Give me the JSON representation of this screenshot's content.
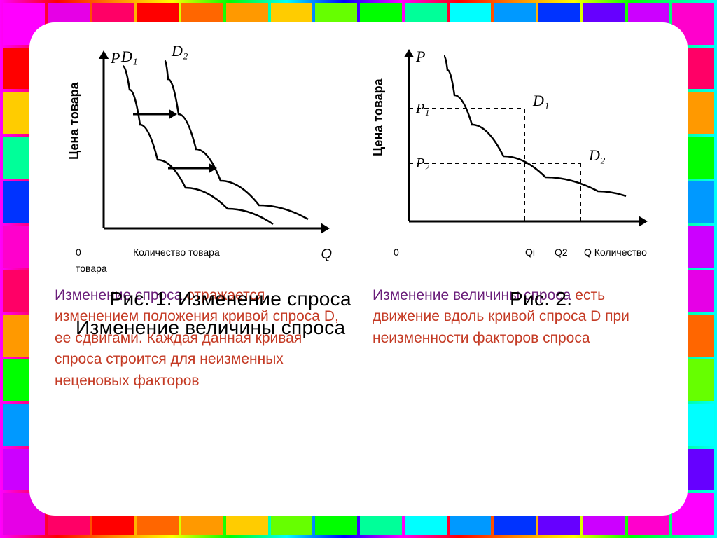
{
  "border": {
    "tile_colors": [
      "#ff00ff",
      "#e600e6",
      "#ff0066",
      "#ff0000",
      "#ff6600",
      "#ff9900",
      "#ffcc00",
      "#66ff00",
      "#00ff00",
      "#00ff99",
      "#00ffff",
      "#0099ff",
      "#0033ff",
      "#6600ff",
      "#cc00ff",
      "#ff00cc"
    ],
    "gap_color": "#222222"
  },
  "slide": {
    "background": "#ffffff",
    "radius": 36
  },
  "chart_left": {
    "type": "line",
    "y_axis_label": "P",
    "y_axis_title_vertical": "Цена товара",
    "x_axis_label": "Q",
    "x_axis_title": "Количество товара",
    "origin_label": "0",
    "curve_labels": [
      "D₁",
      "D₂"
    ],
    "curves": [
      {
        "label": "D₁",
        "color": "#000000",
        "width": 2.5,
        "points": [
          [
            85,
            36
          ],
          [
            95,
            70
          ],
          [
            110,
            120
          ],
          [
            135,
            170
          ],
          [
            175,
            210
          ],
          [
            235,
            240
          ],
          [
            300,
            262
          ]
        ]
      },
      {
        "label": "D₂",
        "color": "#000000",
        "width": 2.5,
        "points": [
          [
            145,
            28
          ],
          [
            150,
            55
          ],
          [
            165,
            105
          ],
          [
            190,
            155
          ],
          [
            225,
            200
          ],
          [
            280,
            235
          ],
          [
            350,
            255
          ]
        ]
      }
    ],
    "arrows": [
      {
        "from": [
          100,
          105
        ],
        "to": [
          163,
          105
        ],
        "stroke": "#000000",
        "width": 3
      },
      {
        "from": [
          150,
          182
        ],
        "to": [
          220,
          182
        ],
        "stroke": "#000000",
        "width": 3
      }
    ],
    "xlim": [
      0,
      380
    ],
    "ylim": [
      0,
      280
    ],
    "axis_color": "#000000",
    "axis_width": 3,
    "label_fontsize": 22,
    "tick_fontsize": 14
  },
  "chart_right": {
    "type": "line",
    "y_axis_label": "P",
    "y_axis_title_vertical": "Цена товара",
    "x_axis_title": "Q Количество",
    "x_ticks": [
      "Qi",
      "Q2"
    ],
    "origin_label": "0",
    "y_ticks": [
      "P₁",
      "P₂"
    ],
    "point_labels": [
      "D₁",
      "D₂"
    ],
    "curve": {
      "color": "#000000",
      "width": 2.5,
      "points": [
        [
          110,
          22
        ],
        [
          115,
          42
        ],
        [
          125,
          78
        ],
        [
          150,
          120
        ],
        [
          195,
          165
        ],
        [
          255,
          195
        ],
        [
          330,
          215
        ],
        [
          370,
          222
        ]
      ]
    },
    "markers": [
      {
        "x": 225,
        "y": 97,
        "label": "D₁"
      },
      {
        "x": 305,
        "y": 175,
        "label": "D₂"
      }
    ],
    "dashed": [
      {
        "from": [
          60,
          97
        ],
        "to": [
          225,
          97
        ]
      },
      {
        "from": [
          225,
          97
        ],
        "to": [
          225,
          258
        ]
      },
      {
        "from": [
          60,
          175
        ],
        "to": [
          305,
          175
        ]
      },
      {
        "from": [
          305,
          175
        ],
        "to": [
          305,
          258
        ]
      }
    ],
    "dash_pattern": "6,5",
    "xlim": [
      0,
      400
    ],
    "ylim": [
      0,
      280
    ],
    "axis_color": "#000000",
    "axis_width": 3,
    "label_fontsize": 22
  },
  "extra_axis_label": "товара",
  "caption_main": "      Рис. 1. Изменение спроса                            Рис. 2. Изменение величины спроса",
  "text_left": {
    "line1_purple": "Изменение спроса",
    "line2_red": "отражается изменением положения кривой спроса D, ее сдвигами. Каждая данная кривая спроса строится для неизменных неценовых факторов"
  },
  "text_right": {
    "line1_purple": "Изменение величины спроса",
    "line1_red_tail": " есть движение вдоль кривой спроса D при неизменности факторов спроса"
  },
  "typography": {
    "caption_fontsize": 28,
    "body_fontsize": 21,
    "caption_color": "#000000",
    "purple": "#6a1e7a",
    "red": "#c43a24"
  }
}
